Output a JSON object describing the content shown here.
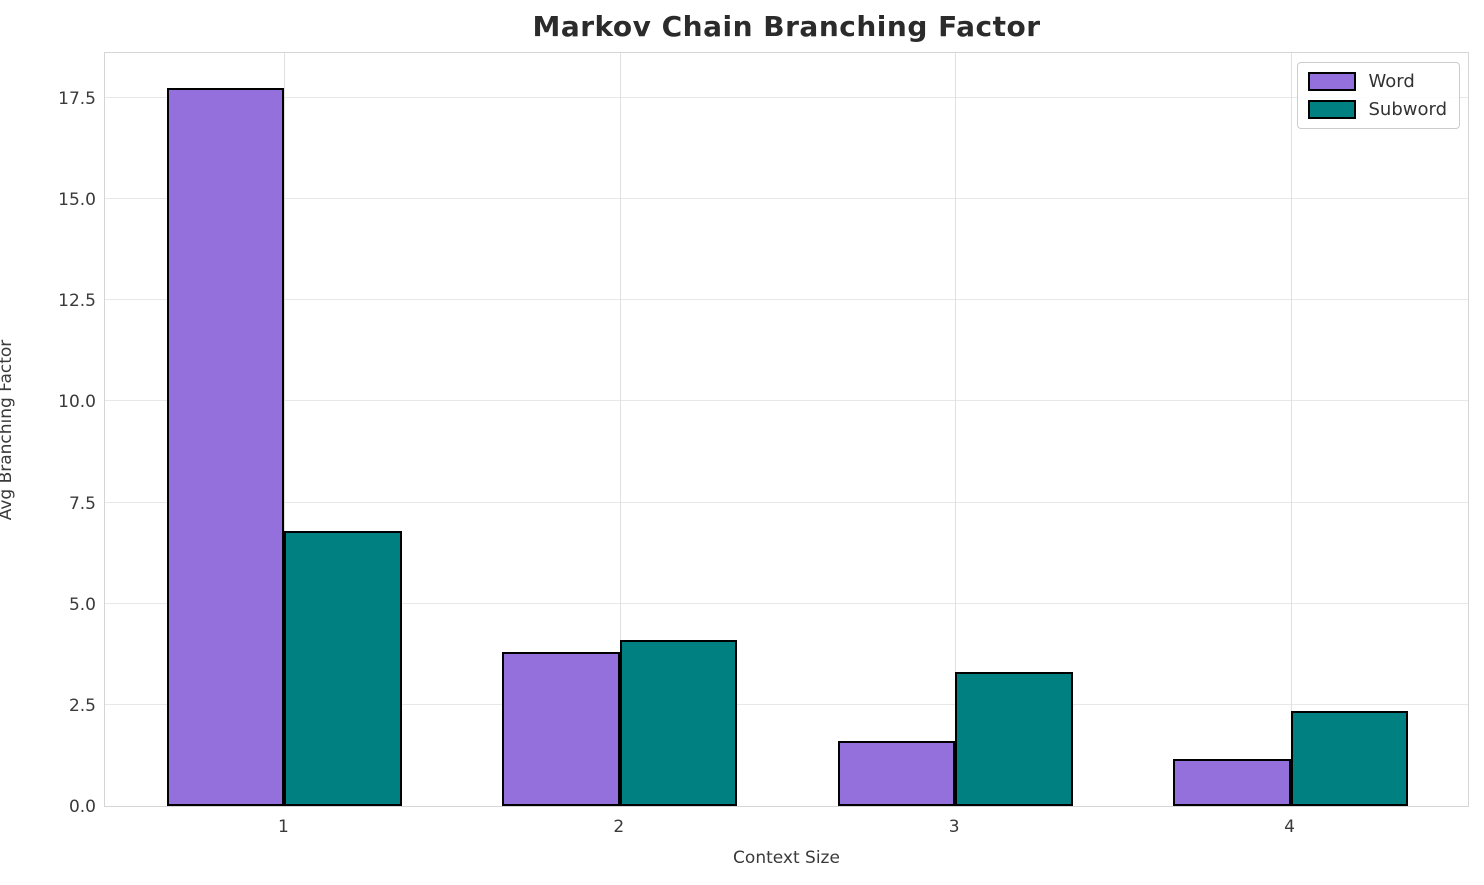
{
  "chart_data": {
    "type": "bar",
    "title": "Markov Chain Branching Factor",
    "xlabel": "Context Size",
    "ylabel": "Avg Branching Factor",
    "categories": [
      "1",
      "2",
      "3",
      "4"
    ],
    "series": [
      {
        "name": "Word",
        "color": "#9370DB",
        "values": [
          17.75,
          3.8,
          1.6,
          1.15
        ]
      },
      {
        "name": "Subword",
        "color": "#008080",
        "values": [
          6.8,
          4.1,
          3.3,
          2.35
        ]
      }
    ],
    "bar_edge_color": "#000000",
    "ylim": [
      0,
      18.66
    ],
    "yticks": [
      "0.0",
      "2.5",
      "5.0",
      "7.5",
      "10.0",
      "12.5",
      "15.0",
      "17.5"
    ],
    "xlim": [
      0.465,
      4.535
    ],
    "bar_width_units": 0.35,
    "grid": true,
    "legend_position": "upper right"
  }
}
